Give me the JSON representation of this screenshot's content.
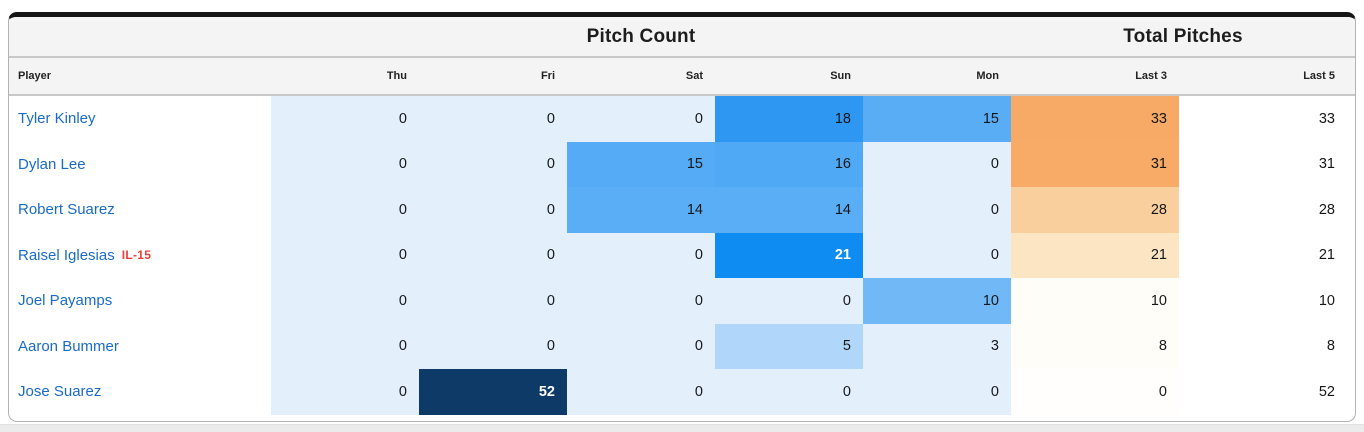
{
  "group_headers": {
    "pitch_count": "Pitch Count",
    "total_pitches": "Total Pitches"
  },
  "columns": {
    "player": "Player",
    "thu": "Thu",
    "fri": "Fri",
    "sat": "Sat",
    "sun": "Sun",
    "mon": "Mon",
    "last3": "Last 3",
    "last5": "Last 5"
  },
  "day_keys": [
    "thu",
    "fri",
    "sat",
    "sun",
    "mon"
  ],
  "colors": {
    "zero_cell_blue": "#e3f0fc",
    "link_blue": "#1a6bc7",
    "il_red": "#e8403d",
    "header_bg": "#f4f4f4",
    "divider_gray": "#c8c8c8",
    "card_top_border": "#161616",
    "card_border": "#b3b3b3",
    "navy_max": "#0d3a67",
    "orange_max": "#f7aa65"
  },
  "rows": [
    {
      "player": "Tyler Kinley",
      "tag": "",
      "days": [
        "0",
        "0",
        "0",
        "18",
        "15"
      ],
      "day_bg": [
        "#e3f0fc",
        "#e3f0fc",
        "#e3f0fc",
        "#2e97f2",
        "#58adf5"
      ],
      "day_fg": [
        "#15171a",
        "#15171a",
        "#15171a",
        "#15171a",
        "#15171a"
      ],
      "last3": "33",
      "last3_bg": "#f7aa65",
      "last5": "33"
    },
    {
      "player": "Dylan Lee",
      "tag": "",
      "days": [
        "0",
        "0",
        "15",
        "16",
        "0"
      ],
      "day_bg": [
        "#e3f0fc",
        "#e3f0fc",
        "#55abf5",
        "#4fa9f4",
        "#e3f0fc"
      ],
      "day_fg": [
        "#15171a",
        "#15171a",
        "#15171a",
        "#15171a",
        "#15171a"
      ],
      "last3": "31",
      "last3_bg": "#f7ab67",
      "last5": "31"
    },
    {
      "player": "Robert Suarez",
      "tag": "",
      "days": [
        "0",
        "0",
        "14",
        "14",
        "0"
      ],
      "day_bg": [
        "#e3f0fc",
        "#e3f0fc",
        "#5aaef5",
        "#5aaef5",
        "#e3f0fc"
      ],
      "day_fg": [
        "#15171a",
        "#15171a",
        "#15171a",
        "#15171a",
        "#15171a"
      ],
      "last3": "28",
      "last3_bg": "#f9d09d",
      "last5": "28"
    },
    {
      "player": "Raisel Iglesias",
      "tag": "IL-15",
      "days": [
        "0",
        "0",
        "0",
        "21",
        "0"
      ],
      "day_bg": [
        "#e3f0fc",
        "#e3f0fc",
        "#e3f0fc",
        "#0e8cf2",
        "#e3f0fc"
      ],
      "day_fg": [
        "#15171a",
        "#15171a",
        "#15171a",
        "#ffffff",
        "#15171a"
      ],
      "last3": "21",
      "last3_bg": "#fce5c2",
      "last5": "21"
    },
    {
      "player": "Joel Payamps",
      "tag": "",
      "days": [
        "0",
        "0",
        "0",
        "0",
        "10"
      ],
      "day_bg": [
        "#e3f0fc",
        "#e3f0fc",
        "#e3f0fc",
        "#e3f0fc",
        "#71b8f6"
      ],
      "day_fg": [
        "#15171a",
        "#15171a",
        "#15171a",
        "#15171a",
        "#15171a"
      ],
      "last3": "10",
      "last3_bg": "#fffdf7",
      "last5": "10"
    },
    {
      "player": "Aaron Bummer",
      "tag": "",
      "days": [
        "0",
        "0",
        "0",
        "5",
        "3"
      ],
      "day_bg": [
        "#e3f0fc",
        "#e3f0fc",
        "#e3f0fc",
        "#b0d7f9",
        "#e3f0fc"
      ],
      "day_fg": [
        "#15171a",
        "#15171a",
        "#15171a",
        "#15171a",
        "#15171a"
      ],
      "last3": "8",
      "last3_bg": "#fffdf8",
      "last5": "8"
    },
    {
      "player": "Jose Suarez",
      "tag": "",
      "days": [
        "0",
        "52",
        "0",
        "0",
        "0"
      ],
      "day_bg": [
        "#e3f0fc",
        "#0d3a67",
        "#e3f0fc",
        "#e3f0fc",
        "#e3f0fc"
      ],
      "day_fg": [
        "#15171a",
        "#ffffff",
        "#15171a",
        "#15171a",
        "#15171a"
      ],
      "last3": "0",
      "last3_bg": "#fffefc",
      "last5": "52"
    }
  ]
}
